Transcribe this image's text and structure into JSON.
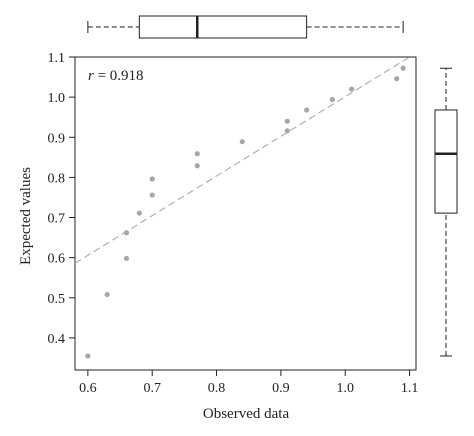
{
  "chart_data": {
    "type": "scatter",
    "xlabel": "Observed data",
    "ylabel": "Expected values",
    "annotation": "r = 0.918",
    "annotation_parts": {
      "symbol": "r",
      "rest": " = 0.918"
    },
    "xlim": [
      0.58,
      1.11
    ],
    "ylim": [
      0.32,
      1.1
    ],
    "x_ticks": [
      0.6,
      0.7,
      0.8,
      0.9,
      1.0,
      1.1
    ],
    "x_tick_labels": [
      "0.6",
      "0.7",
      "0.8",
      "0.9",
      "1.0",
      "1.1"
    ],
    "y_ticks": [
      0.4,
      0.5,
      0.6,
      0.7,
      0.8,
      0.9,
      1.0,
      1.1
    ],
    "y_tick_labels": [
      "0.4",
      "0.5",
      "0.6",
      "0.7",
      "0.8",
      "0.9",
      "1.0",
      "1.1"
    ],
    "points": [
      {
        "x": 0.6,
        "y": 0.355
      },
      {
        "x": 0.63,
        "y": 0.508
      },
      {
        "x": 0.66,
        "y": 0.598
      },
      {
        "x": 0.66,
        "y": 0.662
      },
      {
        "x": 0.68,
        "y": 0.711
      },
      {
        "x": 0.7,
        "y": 0.756
      },
      {
        "x": 0.7,
        "y": 0.796
      },
      {
        "x": 0.77,
        "y": 0.829
      },
      {
        "x": 0.77,
        "y": 0.859
      },
      {
        "x": 0.84,
        "y": 0.889
      },
      {
        "x": 0.91,
        "y": 0.916
      },
      {
        "x": 0.91,
        "y": 0.94
      },
      {
        "x": 0.94,
        "y": 0.968
      },
      {
        "x": 0.98,
        "y": 0.994
      },
      {
        "x": 1.01,
        "y": 1.02
      },
      {
        "x": 1.08,
        "y": 1.046
      },
      {
        "x": 1.09,
        "y": 1.072
      }
    ],
    "fit_line": {
      "x": [
        0.58,
        1.1
      ],
      "y": [
        0.586,
        1.1
      ]
    },
    "x_boxplot": {
      "min": 0.6,
      "q1": 0.68,
      "median": 0.77,
      "q3": 0.94,
      "max": 1.09
    },
    "y_boxplot": {
      "min": 0.355,
      "q1": 0.711,
      "median": 0.859,
      "q3": 0.968,
      "max": 1.072
    },
    "point_color": "#a6a6a6",
    "line_color": "#b0b0b0",
    "axis_color": "#222222"
  }
}
